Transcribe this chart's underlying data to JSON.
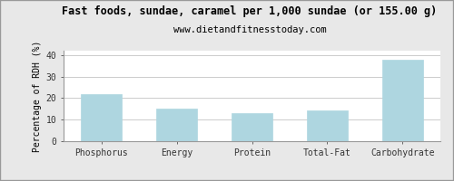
{
  "title": "Fast foods, sundae, caramel per 1,000 sundae (or 155.00 g)",
  "subtitle": "www.dietandfitnesstoday.com",
  "categories": [
    "Phosphorus",
    "Energy",
    "Protein",
    "Total-Fat",
    "Carbohydrate"
  ],
  "values": [
    22.0,
    15.2,
    13.2,
    14.2,
    38.0
  ],
  "bar_color": "#aed6e0",
  "bar_edge_color": "#aed6e0",
  "ylabel": "Percentage of RDH (%)",
  "ylim": [
    0,
    42
  ],
  "yticks": [
    0,
    10,
    20,
    30,
    40
  ],
  "background_color": "#e8e8e8",
  "plot_bg_color": "#ffffff",
  "title_fontsize": 8.5,
  "subtitle_fontsize": 7.5,
  "ylabel_fontsize": 7,
  "tick_fontsize": 7,
  "grid_color": "#cccccc",
  "border_color": "#999999"
}
